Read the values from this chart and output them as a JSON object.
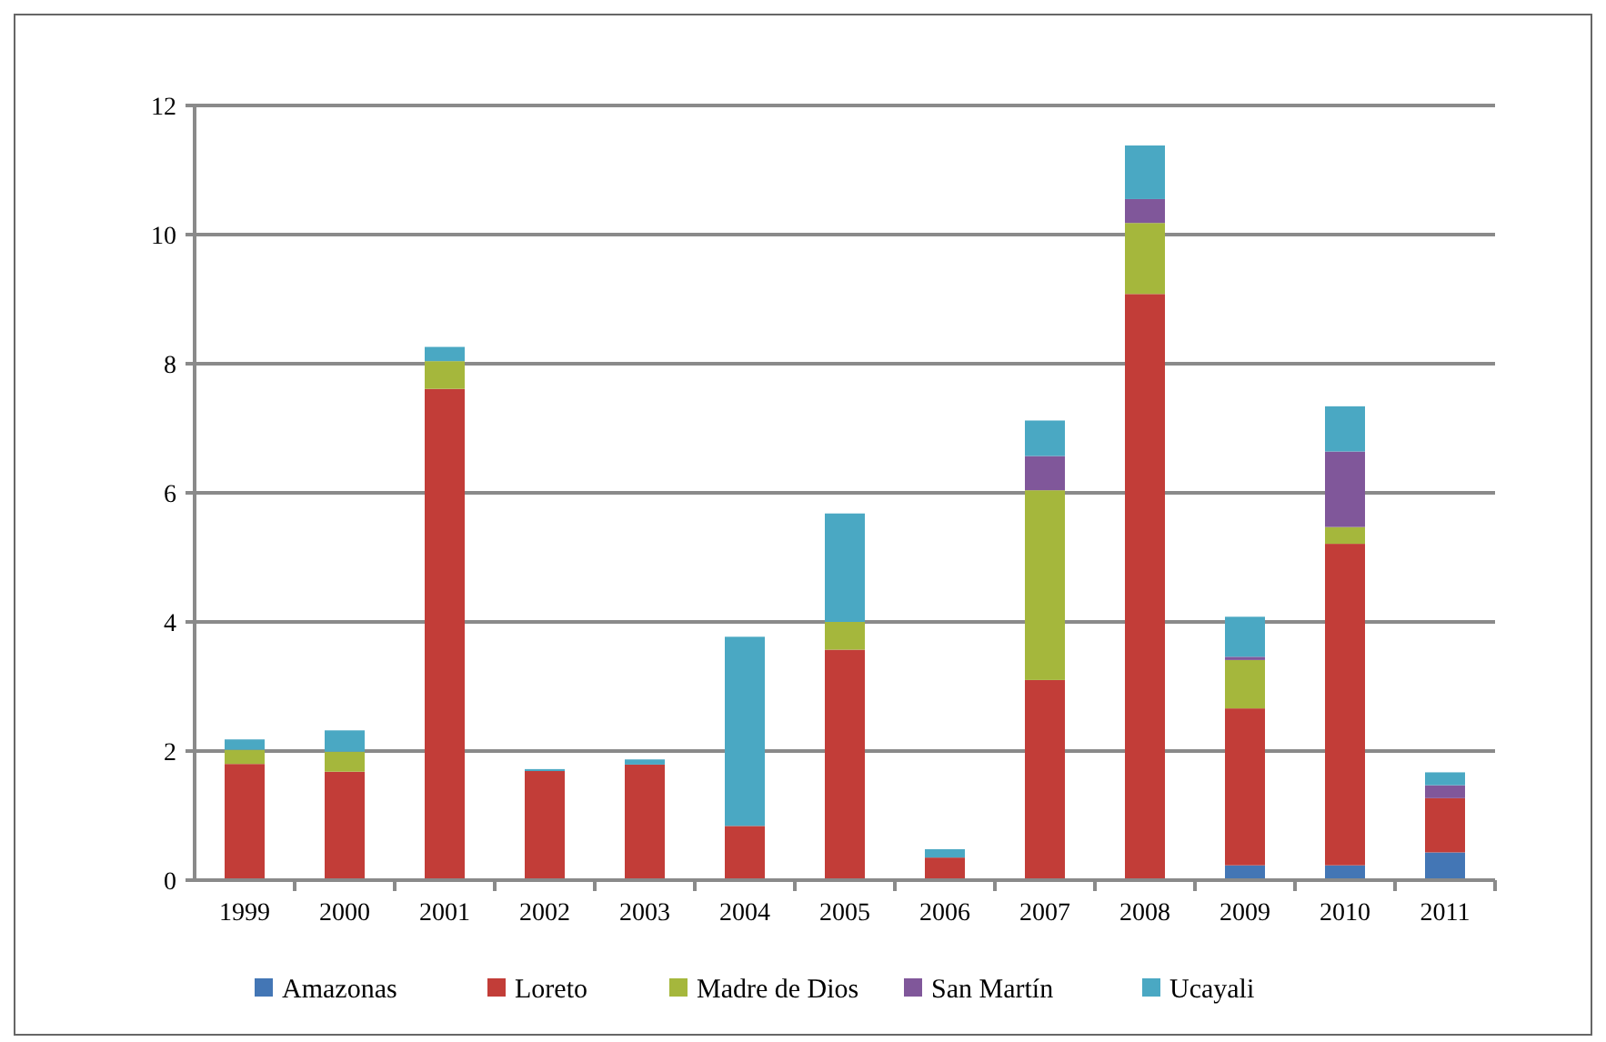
{
  "chart_data": {
    "type": "bar",
    "stacked": true,
    "categories": [
      "1999",
      "2000",
      "2001",
      "2002",
      "2003",
      "2004",
      "2005",
      "2006",
      "2007",
      "2008",
      "2009",
      "2010",
      "2011"
    ],
    "series": [
      {
        "name": "Amazonas",
        "color": "#4376b5",
        "values": [
          0,
          0,
          0,
          0,
          0,
          0,
          0,
          0,
          0,
          0,
          0.23,
          0.23,
          0.43
        ]
      },
      {
        "name": "Loreto",
        "color": "#c23d38",
        "values": [
          1.8,
          1.68,
          7.61,
          1.69,
          1.79,
          0.84,
          3.57,
          0.35,
          3.1,
          9.08,
          2.43,
          4.98,
          0.84
        ]
      },
      {
        "name": "Madre de Dios",
        "color": "#a5b73c",
        "values": [
          0.22,
          0.31,
          0.43,
          0,
          0,
          0,
          0.43,
          0,
          2.94,
          1.1,
          0.75,
          0.26,
          0
        ]
      },
      {
        "name": "San Martín",
        "color": "#80579a",
        "values": [
          0,
          0,
          0,
          0,
          0,
          0,
          0,
          0,
          0.53,
          0.37,
          0.05,
          1.17,
          0.2
        ]
      },
      {
        "name": "Ucayali",
        "color": "#4aa8c3",
        "values": [
          0.16,
          0.33,
          0.22,
          0.03,
          0.08,
          2.93,
          1.68,
          0.13,
          0.55,
          0.83,
          0.62,
          0.7,
          0.2
        ]
      }
    ],
    "ylim": [
      0,
      12
    ],
    "yticks": [
      0,
      2,
      4,
      6,
      8,
      10,
      12
    ],
    "grid": "y",
    "legend": "bottom"
  }
}
